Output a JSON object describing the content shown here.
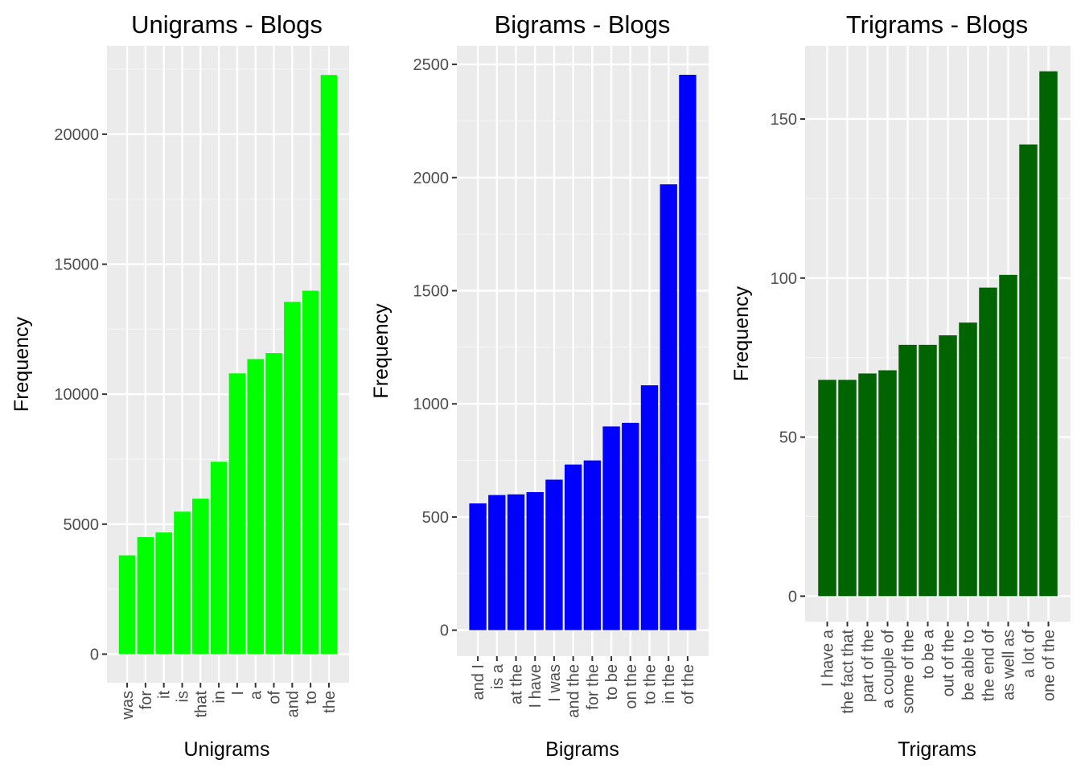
{
  "chart_data": [
    {
      "type": "bar",
      "title": "Unigrams - Blogs",
      "xlabel": "Unigrams",
      "ylabel": "Frequency",
      "ylim": [
        -1100,
        23400
      ],
      "yticks": [
        0,
        5000,
        10000,
        15000,
        20000
      ],
      "grid": true,
      "color": "#00ff00",
      "categories": [
        "was",
        "for",
        "it",
        "is",
        "that",
        "in",
        "I",
        "a",
        "of",
        "and",
        "to",
        "the"
      ],
      "values": [
        3800,
        4500,
        4680,
        5480,
        5980,
        7400,
        10800,
        11350,
        11580,
        13550,
        13980,
        22280
      ]
    },
    {
      "type": "bar",
      "title": "Bigrams - Blogs",
      "xlabel": "Bigrams",
      "ylabel": "Frequency",
      "ylim": [
        -115,
        2582
      ],
      "yticks": [
        0,
        500,
        1000,
        1500,
        2000,
        2500
      ],
      "grid": true,
      "color": "#0000ff",
      "categories": [
        "and I",
        "is a",
        "at the",
        "I have",
        "I was",
        "and the",
        "for the",
        "to be",
        "on the",
        "to the",
        "in the",
        "of the"
      ],
      "values": [
        560,
        597,
        600,
        610,
        665,
        732,
        750,
        900,
        916,
        1082,
        1970,
        2454
      ]
    },
    {
      "type": "bar",
      "title": "Trigrams - Blogs",
      "xlabel": "Trigrams",
      "ylabel": "Frequency",
      "ylim": [
        -8,
        173
      ],
      "yticks": [
        0,
        50,
        100,
        150
      ],
      "grid": true,
      "color": "#006400",
      "categories": [
        "I have a",
        "the fact that",
        "part of the",
        "a couple of",
        "some of the",
        "to be a",
        "out of the",
        "be able to",
        "the end of",
        "as well as",
        "a lot of",
        "one of the"
      ],
      "values": [
        68,
        68,
        70,
        71,
        79,
        79,
        82,
        86,
        97,
        101,
        142,
        165
      ]
    }
  ]
}
